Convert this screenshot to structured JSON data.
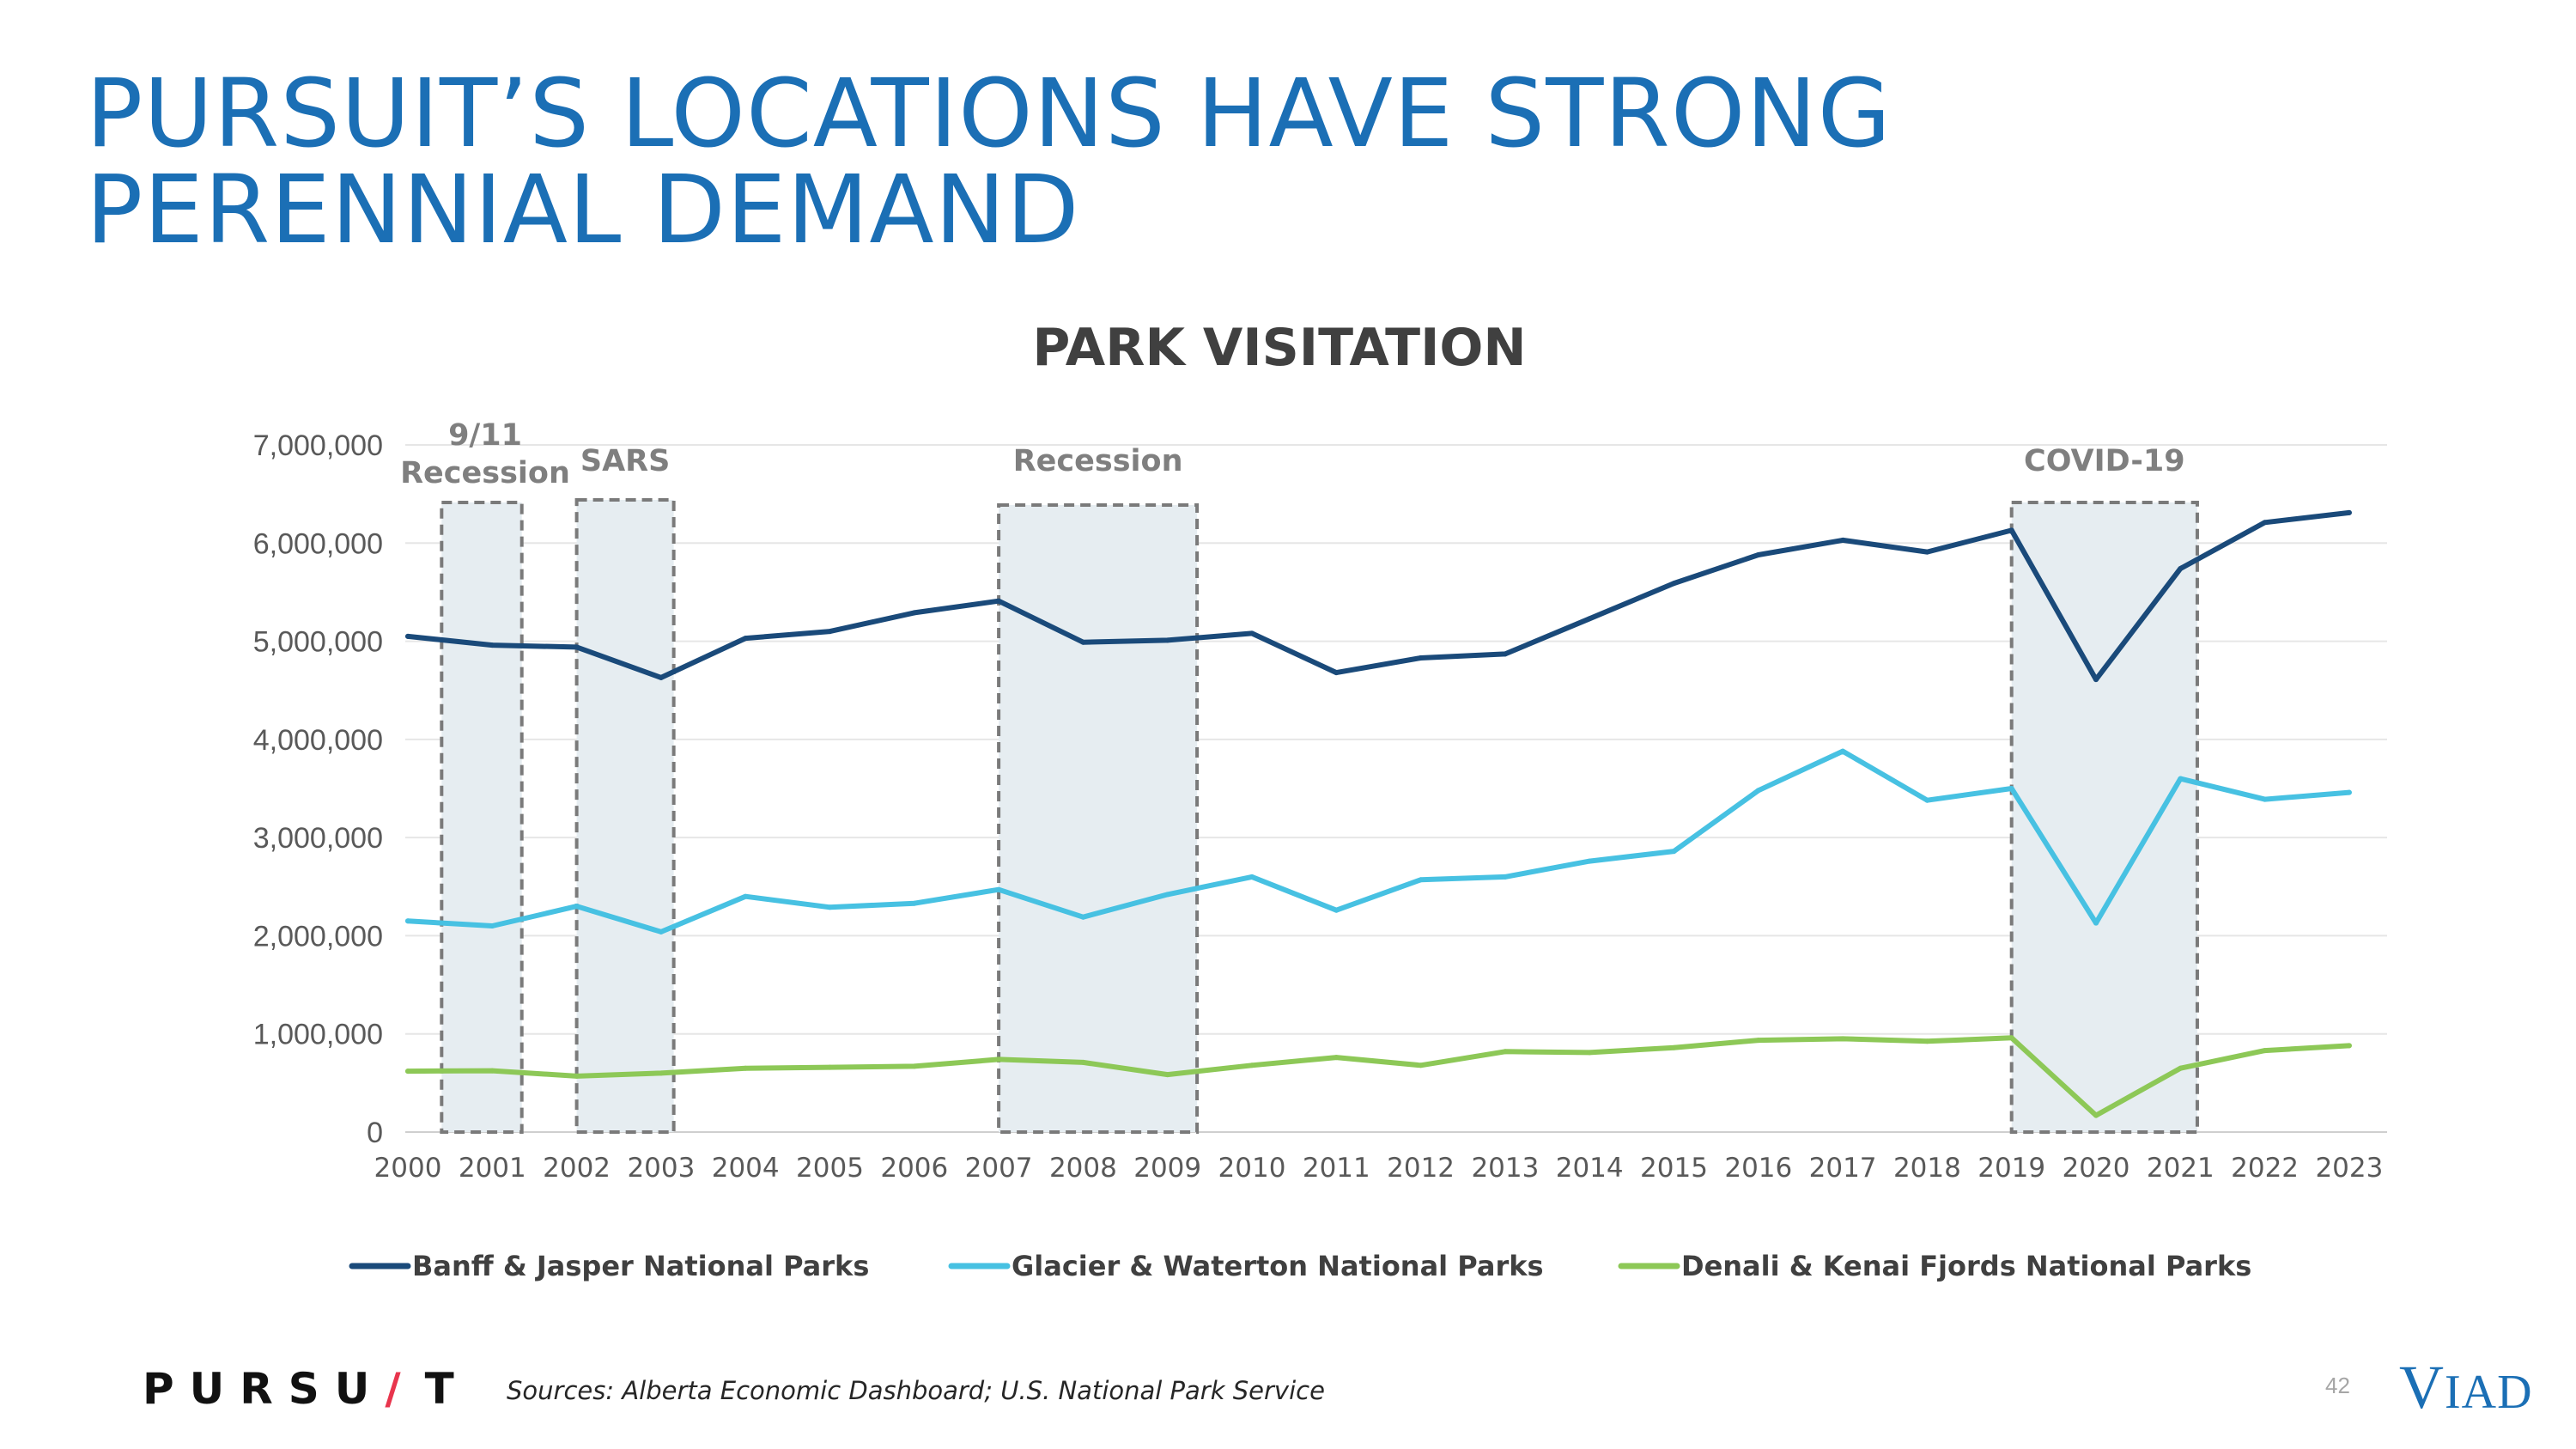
{
  "slide": {
    "title_line1": "PURSUIT’S LOCATIONS HAVE STRONG",
    "title_line2": "PERENNIAL DEMAND",
    "source": "Sources: Alberta Economic Dashboard; U.S. National Park Service",
    "page_number": "42",
    "brand_logo": {
      "part1": "PURSU",
      "slash": "/",
      "part2": "T"
    },
    "partner_logo": {
      "v": "V",
      "rest": "IAD"
    }
  },
  "colors": {
    "title": "#1b6fb5",
    "banff": "#1a4a7a",
    "glacier": "#47c1e2",
    "denali": "#8dc857",
    "band_fill": "#e6edf1",
    "band_stroke": "#7a7a7a",
    "grid": "#e6e6e6"
  },
  "chart_data": {
    "type": "line",
    "title": "PARK VISITATION",
    "xlabel": "",
    "ylabel": "",
    "x": [
      "2000",
      "2001",
      "2002",
      "2003",
      "2004",
      "2005",
      "2006",
      "2007",
      "2008",
      "2009",
      "2010",
      "2011",
      "2012",
      "2013",
      "2014",
      "2015",
      "2016",
      "2017",
      "2018",
      "2019",
      "2020",
      "2021",
      "2022",
      "2023"
    ],
    "ylim": [
      0,
      7000000
    ],
    "yticks": [
      0,
      1000000,
      2000000,
      3000000,
      4000000,
      5000000,
      6000000,
      7000000
    ],
    "ytick_labels": [
      "0",
      "1,000,000",
      "2,000,000",
      "3,000,000",
      "4,000,000",
      "5,000,000",
      "6,000,000",
      "7,000,000"
    ],
    "grid": true,
    "legend_position": "bottom",
    "series": [
      {
        "name": "Banff & Jasper National Parks",
        "color": "#1a4a7a",
        "values": [
          5050000,
          4960000,
          4940000,
          4630000,
          5030000,
          5100000,
          5290000,
          5410000,
          4990000,
          5010000,
          5080000,
          4680000,
          4830000,
          4870000,
          5230000,
          5590000,
          5880000,
          6030000,
          5910000,
          6130000,
          4610000,
          5740000,
          6210000,
          6310000
        ]
      },
      {
        "name": "Glacier & Waterton National Parks",
        "color": "#47c1e2",
        "values": [
          2150000,
          2100000,
          2300000,
          2040000,
          2400000,
          2290000,
          2330000,
          2470000,
          2190000,
          2420000,
          2600000,
          2260000,
          2570000,
          2600000,
          2760000,
          2860000,
          3480000,
          3880000,
          3380000,
          3500000,
          2130000,
          3600000,
          3390000,
          3460000
        ]
      },
      {
        "name": "Denali & Kenai Fjords National Parks",
        "color": "#8dc857",
        "values": [
          620000,
          625000,
          570000,
          600000,
          650000,
          660000,
          670000,
          740000,
          710000,
          585000,
          680000,
          760000,
          680000,
          820000,
          810000,
          860000,
          935000,
          950000,
          925000,
          960000,
          170000,
          650000,
          830000,
          880000
        ]
      }
    ],
    "annotations": [
      {
        "label": "9/11",
        "label2": "Recession",
        "from": "2000.4",
        "to": "2001.35"
      },
      {
        "label": "SARS",
        "label2": "",
        "from": "2002",
        "to": "2003.15"
      },
      {
        "label": "Recession",
        "label2": "",
        "from": "2007",
        "to": "2009.35"
      },
      {
        "label": "COVID-19",
        "label2": "",
        "from": "2019",
        "to": "2021.2"
      }
    ]
  }
}
